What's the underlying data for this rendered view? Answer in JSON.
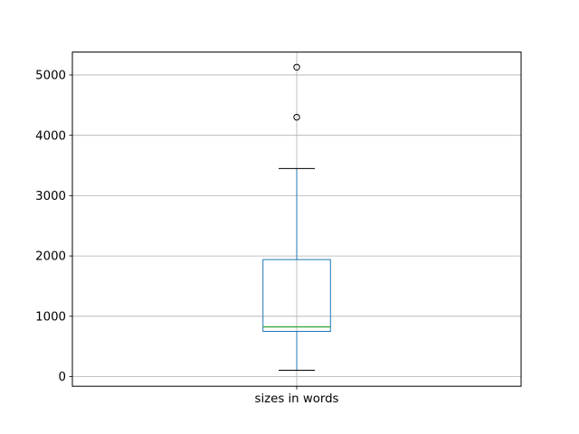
{
  "chart_data": {
    "type": "boxplot",
    "title": "",
    "xlabel": "",
    "ylabel": "",
    "categories": [
      "sizes in words"
    ],
    "series": [
      {
        "name": "sizes in words",
        "whisker_low": 105,
        "q1": 750,
        "median": 825,
        "q3": 1940,
        "whisker_high": 3450,
        "outliers": [
          4300,
          5130
        ]
      }
    ],
    "y_ticks": [
      0,
      1000,
      2000,
      3000,
      4000,
      5000
    ],
    "y_tick_labels": [
      "0",
      "1000",
      "2000",
      "3000",
      "4000",
      "5000"
    ],
    "ylim": [
      -160,
      5380
    ],
    "grid": true,
    "legend": "none",
    "colors": {
      "box": "#1f77b4",
      "whisker": "#1f77b4",
      "median": "#2ca02c",
      "cap": "#000000",
      "flier_edge": "#000000",
      "grid": "#b0b0b0",
      "spine": "#000000",
      "tick": "#000000",
      "text": "#000000",
      "background": "#ffffff"
    }
  }
}
